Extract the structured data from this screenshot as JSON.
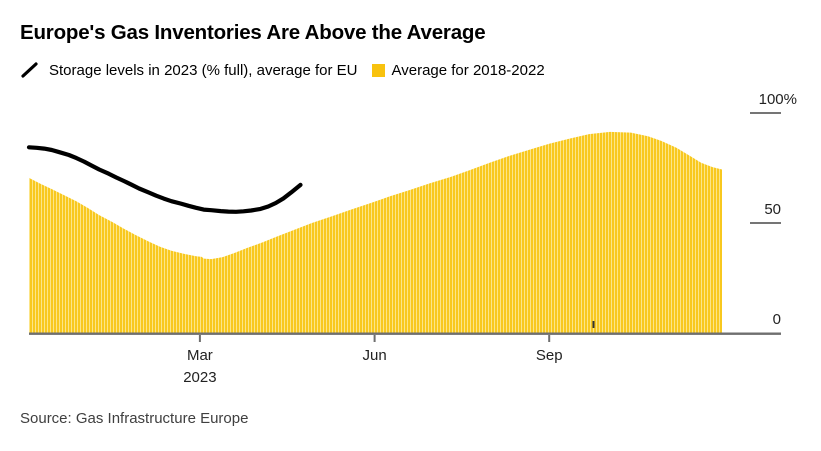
{
  "title": "Europe's Gas Inventories Are Above the Average",
  "legend": {
    "series_line_label": "Storage levels in 2023 (% full), average for EU",
    "series_area_label": "Average for 2018-2022"
  },
  "source": "Source: Gas Infrastructure Europe",
  "colors": {
    "line_2023": "#000000",
    "area_stripe_dark": "#f8c81f",
    "area_stripe_light": "#fce588",
    "legend_swatch": "#f8c20e",
    "axis": "#6f6f6f",
    "tick_text": "#222222"
  },
  "chart_data": {
    "type": "line",
    "title": "Europe's Gas Inventories Are Above the Average",
    "xlabel": "",
    "ylabel": "% full",
    "ylim": [
      0,
      100
    ],
    "grid": false,
    "legend_position": "top",
    "x_axis_unit": "days from 2022-12-01",
    "x_range_days": [
      0,
      365
    ],
    "y_ticks": [
      {
        "value": 100,
        "label": "100%"
      },
      {
        "value": 50,
        "label": "50"
      },
      {
        "value": 0,
        "label": "0"
      }
    ],
    "x_ticks": [
      {
        "day": 90,
        "label": "Mar",
        "sublabel": "2023"
      },
      {
        "day": 182,
        "label": "Jun"
      },
      {
        "day": 274,
        "label": "Sep"
      }
    ],
    "series": [
      {
        "name": "Average for 2018-2022",
        "type": "area",
        "unit": "% full",
        "points": [
          [
            0,
            70.5
          ],
          [
            6,
            67.8
          ],
          [
            12,
            65.4
          ],
          [
            18,
            62.8
          ],
          [
            25,
            59.8
          ],
          [
            31,
            56.8
          ],
          [
            37,
            53.6
          ],
          [
            44,
            50.4
          ],
          [
            50,
            47.4
          ],
          [
            56,
            44.6
          ],
          [
            63,
            41.6
          ],
          [
            69,
            39.2
          ],
          [
            75,
            37.4
          ],
          [
            82,
            35.9
          ],
          [
            88,
            34.9
          ],
          [
            91,
            34.6
          ],
          [
            92,
            33.8
          ],
          [
            96,
            33.6
          ],
          [
            102,
            34.5
          ],
          [
            108,
            36.3
          ],
          [
            115,
            38.7
          ],
          [
            123,
            41.2
          ],
          [
            131,
            44.0
          ],
          [
            140,
            47.0
          ],
          [
            149,
            50.0
          ],
          [
            159,
            52.9
          ],
          [
            169,
            55.9
          ],
          [
            180,
            59.1
          ],
          [
            190,
            62.1
          ],
          [
            201,
            65.1
          ],
          [
            211,
            68.0
          ],
          [
            222,
            70.9
          ],
          [
            232,
            74.0
          ],
          [
            243,
            77.5
          ],
          [
            253,
            80.5
          ],
          [
            264,
            83.4
          ],
          [
            274,
            86.0
          ],
          [
            285,
            88.4
          ],
          [
            295,
            90.4
          ],
          [
            306,
            91.4
          ],
          [
            317,
            91.1
          ],
          [
            326,
            89.4
          ],
          [
            333,
            87.3
          ],
          [
            341,
            84.2
          ],
          [
            348,
            80.6
          ],
          [
            354,
            77.4
          ],
          [
            360,
            75.4
          ],
          [
            365,
            74.3
          ]
        ]
      },
      {
        "name": "Storage levels in 2023 (% full), average for EU",
        "type": "line",
        "unit": "% full",
        "points": [
          [
            0,
            84.4
          ],
          [
            4,
            84.2
          ],
          [
            8,
            83.8
          ],
          [
            12,
            83.2
          ],
          [
            16,
            82.2
          ],
          [
            21,
            80.9
          ],
          [
            25,
            79.5
          ],
          [
            29,
            77.9
          ],
          [
            33,
            76.1
          ],
          [
            37,
            74.3
          ],
          [
            42,
            72.4
          ],
          [
            46,
            70.7
          ],
          [
            50,
            69.1
          ],
          [
            54,
            67.4
          ],
          [
            58,
            65.7
          ],
          [
            63,
            63.9
          ],
          [
            67,
            62.4
          ],
          [
            71,
            61.1
          ],
          [
            75,
            59.9
          ],
          [
            80,
            58.8
          ],
          [
            84,
            57.8
          ],
          [
            88,
            56.9
          ],
          [
            92,
            56.1
          ],
          [
            96,
            55.8
          ],
          [
            101,
            55.4
          ],
          [
            105,
            55.2
          ],
          [
            109,
            55.1
          ],
          [
            113,
            55.3
          ],
          [
            117,
            55.7
          ],
          [
            122,
            56.4
          ],
          [
            126,
            57.5
          ],
          [
            130,
            59.1
          ],
          [
            134,
            61.2
          ],
          [
            138,
            63.8
          ],
          [
            143,
            67.3
          ]
        ]
      }
    ]
  }
}
